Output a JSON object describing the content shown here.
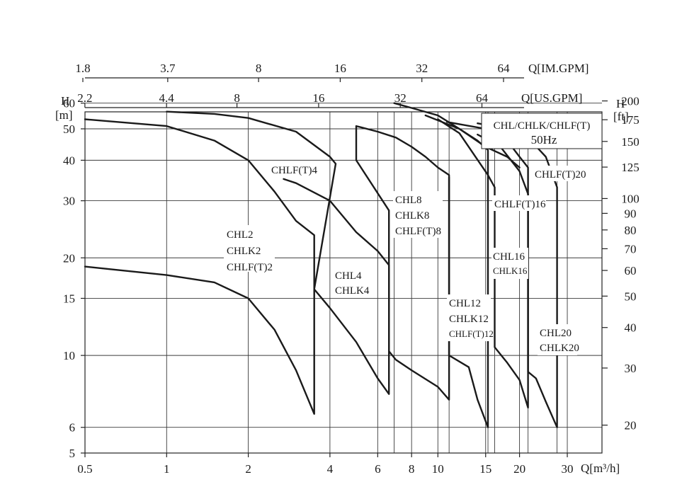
{
  "chart_data": {
    "type": "line",
    "title": "CHL/CHLK/CHLF(T)",
    "subtitle": "50Hz",
    "x_scale": "log",
    "y_scale": "log",
    "xlim": [
      0.5,
      36
    ],
    "ylim": [
      5,
      72
    ],
    "x_axis_label": "Q[m³/h]",
    "x_ticks": [
      {
        "value": 0.5,
        "label": "0.5"
      },
      {
        "value": 1,
        "label": "1"
      },
      {
        "value": 2,
        "label": "2"
      },
      {
        "value": 4,
        "label": "4"
      },
      {
        "value": 6,
        "label": "6"
      },
      {
        "value": 8,
        "label": "8"
      },
      {
        "value": 10,
        "label": "10"
      },
      {
        "value": 15,
        "label": "15"
      },
      {
        "value": 20,
        "label": "20"
      },
      {
        "value": 30,
        "label": "30"
      }
    ],
    "x_extra_grid": [
      6.9,
      11,
      15.3,
      16.2,
      21.5,
      27.5
    ],
    "y_left_label_h": "H",
    "y_left_label_unit": "[m]",
    "y_left_ticks": [
      {
        "value": 5,
        "label": "5"
      },
      {
        "value": 6,
        "label": "6"
      },
      {
        "value": 10,
        "label": "10"
      },
      {
        "value": 15,
        "label": "15"
      },
      {
        "value": 20,
        "label": "20"
      },
      {
        "value": 30,
        "label": "30"
      },
      {
        "value": 40,
        "label": "40"
      },
      {
        "value": 50,
        "label": "50"
      },
      {
        "value": 60,
        "label": "60"
      }
    ],
    "y_right_label_h": "H",
    "y_right_label_unit": "[ft]",
    "y_right_ticks": [
      {
        "ft": 20,
        "label": "20"
      },
      {
        "ft": 30,
        "label": "30"
      },
      {
        "ft": 40,
        "label": "40"
      },
      {
        "ft": 50,
        "label": "50"
      },
      {
        "ft": 60,
        "label": "60"
      },
      {
        "ft": 70,
        "label": "70"
      },
      {
        "ft": 80,
        "label": "80"
      },
      {
        "ft": 90,
        "label": "90"
      },
      {
        "ft": 100,
        "label": "100"
      },
      {
        "ft": 125,
        "label": "125"
      },
      {
        "ft": 150,
        "label": "150"
      },
      {
        "ft": 175,
        "label": "175"
      },
      {
        "ft": 200,
        "label": "200"
      }
    ],
    "top_axis_us_label": "Q[US.GPM]",
    "top_axis_us_ticks": [
      {
        "gpm": 2.2,
        "label": "2.2"
      },
      {
        "gpm": 4.4,
        "label": "4.4"
      },
      {
        "gpm": 8,
        "label": "8"
      },
      {
        "gpm": 16,
        "label": "16"
      },
      {
        "gpm": 32,
        "label": "32"
      },
      {
        "gpm": 64,
        "label": "64"
      }
    ],
    "top_axis_im_label": "Q[IM.GPM]",
    "top_axis_im_ticks": [
      {
        "gpm": 1.8,
        "label": "1.8"
      },
      {
        "gpm": 3.7,
        "label": "3.7"
      },
      {
        "gpm": 8,
        "label": "8"
      },
      {
        "gpm": 16,
        "label": "16"
      },
      {
        "gpm": 32,
        "label": "32"
      },
      {
        "gpm": 64,
        "label": "64"
      }
    ],
    "series": [
      {
        "name": "CHL2/CHLK2/CHLF(T)2 max",
        "points": [
          [
            0.5,
            53.5
          ],
          [
            1,
            51
          ],
          [
            1.5,
            46
          ],
          [
            2,
            40
          ],
          [
            2.5,
            32
          ],
          [
            3,
            26
          ],
          [
            3.5,
            23.5
          ],
          [
            3.5,
            6.6
          ],
          [
            3,
            9
          ],
          [
            2.5,
            12
          ],
          [
            2,
            15
          ],
          [
            1.5,
            16.8
          ],
          [
            1,
            17.7
          ],
          [
            0.5,
            18.8
          ]
        ]
      },
      {
        "name": "CHLF(T)4 max",
        "points": [
          [
            1,
            56.5
          ],
          [
            1.5,
            55.6
          ],
          [
            2,
            54
          ],
          [
            3,
            49
          ],
          [
            4,
            41
          ],
          [
            4.2,
            39
          ],
          [
            3.5,
            16
          ],
          [
            4,
            14
          ],
          [
            5,
            11
          ],
          [
            6,
            8.5
          ],
          [
            6.6,
            7.6
          ],
          [
            6.6,
            19
          ],
          [
            6,
            21
          ],
          [
            5,
            24
          ],
          [
            4,
            30
          ],
          [
            3,
            34
          ],
          [
            2.7,
            35
          ]
        ]
      },
      {
        "name": "CHL8/CHLK8/CHLF(T)8 max",
        "points": [
          [
            5,
            51
          ],
          [
            6,
            49
          ],
          [
            7,
            47
          ],
          [
            8,
            44
          ],
          [
            9,
            41
          ],
          [
            10,
            38
          ],
          [
            11,
            36
          ],
          [
            11,
            7.3
          ],
          [
            10,
            8
          ],
          [
            8,
            9
          ],
          [
            7,
            9.7
          ],
          [
            6.6,
            10.3
          ],
          [
            6.6,
            28
          ],
          [
            5,
            40
          ],
          [
            5,
            51
          ]
        ]
      },
      {
        "name": "CHL12/CHLK12/CHLF(T)12 max",
        "points": [
          [
            6.9,
            60
          ],
          [
            8,
            58
          ],
          [
            10,
            55
          ],
          [
            12,
            50
          ],
          [
            14,
            46
          ],
          [
            15.3,
            43
          ],
          [
            15.3,
            6
          ],
          [
            14,
            7.3
          ],
          [
            13,
            9.2
          ],
          [
            11,
            10
          ],
          [
            11,
            35.5
          ]
        ]
      },
      {
        "name": "CHLF(T)16 max",
        "points": [
          [
            10.8,
            52.5
          ],
          [
            15,
            50
          ],
          [
            18,
            46
          ],
          [
            20,
            41
          ],
          [
            21.5,
            38
          ],
          [
            21.5,
            6.9
          ],
          [
            20,
            8.4
          ],
          [
            18,
            9.5
          ],
          [
            16.2,
            10.6
          ],
          [
            16.2,
            33
          ],
          [
            15.3,
            36
          ],
          [
            12,
            48.5
          ],
          [
            10,
            53.5
          ]
        ]
      },
      {
        "name": "CHLF(T)20 max",
        "points": [
          [
            14,
            52
          ],
          [
            18,
            50
          ],
          [
            22,
            46
          ],
          [
            25,
            41
          ],
          [
            27.5,
            33
          ],
          [
            27.5,
            6
          ],
          [
            25,
            7.2
          ],
          [
            23,
            8.5
          ],
          [
            21.5,
            8.9
          ],
          [
            21.5,
            31.5
          ],
          [
            20,
            37
          ],
          [
            17,
            44
          ],
          [
            14,
            48
          ]
        ]
      },
      {
        "name": "CHL16 inner",
        "points": [
          [
            9,
            55
          ],
          [
            12,
            50
          ],
          [
            15,
            44
          ],
          [
            18,
            41
          ],
          [
            20,
            38
          ]
        ]
      }
    ],
    "annotations": [
      {
        "line1": "CHL2",
        "line2": "CHLK2",
        "line3": "CHLF(T)2"
      },
      {
        "line1": "CHLF(T)4"
      },
      {
        "line1": "CHL4",
        "line2": "CHLK4"
      },
      {
        "line1": "CHL8",
        "line2": "CHLK8",
        "line3": "CHLF(T)8"
      },
      {
        "line1": "CHL12",
        "line2": "CHLK12",
        "line3": "CHLF(T)12"
      },
      {
        "line1": "CHLF(T)16"
      },
      {
        "line1": "CHL16",
        "line2": "CHLK16"
      },
      {
        "line1": "CHLF(T)20"
      },
      {
        "line1": "CHL20",
        "line2": "CHLK20"
      }
    ]
  }
}
